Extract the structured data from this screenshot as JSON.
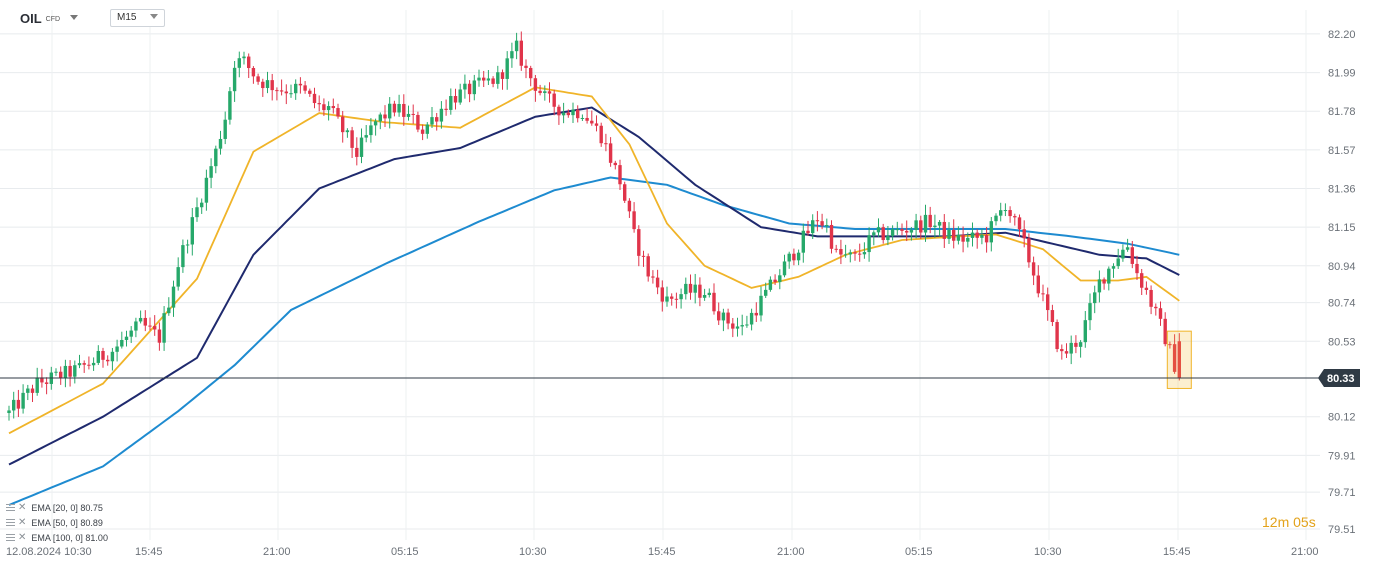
{
  "header": {
    "symbol": "OIL",
    "symbol_type": "CFD",
    "timeframe": "M15"
  },
  "indicators": [
    {
      "label": "EMA [20,  0]  80.75",
      "color": "#f0b429"
    },
    {
      "label": "EMA [50,  0]  80.89",
      "color": "#1f2a6e"
    },
    {
      "label": "EMA [100,  0]  81.00",
      "color": "#1e8bd0"
    }
  ],
  "countdown": {
    "minutes": "12",
    "minutes_unit": "m",
    "seconds": "05",
    "seconds_unit": "s"
  },
  "colors": {
    "up": "#26a86a",
    "down": "#e0344a",
    "ema20": "#f0b429",
    "ema50": "#1f2a6e",
    "ema100": "#1e8bd0",
    "current_price_line": "#2f3a45"
  },
  "chart_data": {
    "type": "candlestick",
    "interval": "M15",
    "ylim": [
      79.45,
      82.33
    ],
    "y_ticks": [
      "82.20",
      "81.99",
      "81.78",
      "81.57",
      "81.36",
      "81.15",
      "80.94",
      "80.74",
      "80.53",
      "80.33",
      "80.12",
      "79.91",
      "79.71",
      "79.51"
    ],
    "x_tick_labels": [
      "12.08.2024  10:30",
      "15:45",
      "21:00",
      "05:15",
      "10:30",
      "15:45",
      "21:00",
      "05:15",
      "10:30",
      "15:45",
      "21:00"
    ],
    "current_price": "80.33",
    "anchors": [
      [
        0,
        80.14
      ],
      [
        6,
        80.3
      ],
      [
        15,
        80.38
      ],
      [
        22,
        80.48
      ],
      [
        28,
        80.62
      ],
      [
        32,
        80.55
      ],
      [
        36,
        80.95
      ],
      [
        40,
        81.25
      ],
      [
        44,
        81.56
      ],
      [
        46,
        81.75
      ],
      [
        48,
        82.05
      ],
      [
        50,
        82.05
      ],
      [
        53,
        81.95
      ],
      [
        58,
        81.9
      ],
      [
        62,
        81.9
      ],
      [
        66,
        81.8
      ],
      [
        68,
        81.8
      ],
      [
        74,
        81.55
      ],
      [
        78,
        81.72
      ],
      [
        82,
        81.8
      ],
      [
        86,
        81.73
      ],
      [
        88,
        81.68
      ],
      [
        94,
        81.85
      ],
      [
        100,
        81.92
      ],
      [
        104,
        81.96
      ],
      [
        108,
        82.12
      ],
      [
        110,
        82.0
      ],
      [
        114,
        81.85
      ],
      [
        118,
        81.78
      ],
      [
        122,
        81.78
      ],
      [
        126,
        81.65
      ],
      [
        130,
        81.4
      ],
      [
        133,
        81.1
      ],
      [
        136,
        80.9
      ],
      [
        140,
        80.75
      ],
      [
        144,
        80.8
      ],
      [
        148,
        80.8
      ],
      [
        152,
        80.65
      ],
      [
        156,
        80.6
      ],
      [
        160,
        80.75
      ],
      [
        164,
        80.9
      ],
      [
        168,
        81.05
      ],
      [
        172,
        81.2
      ],
      [
        174,
        81.15
      ],
      [
        176,
        81.0
      ],
      [
        180,
        80.98
      ],
      [
        184,
        81.1
      ],
      [
        188,
        81.12
      ],
      [
        192,
        81.15
      ],
      [
        196,
        81.18
      ],
      [
        200,
        81.1
      ],
      [
        204,
        81.08
      ],
      [
        208,
        81.1
      ],
      [
        212,
        81.28
      ],
      [
        216,
        81.05
      ],
      [
        220,
        80.75
      ],
      [
        224,
        80.45
      ],
      [
        228,
        80.55
      ],
      [
        232,
        80.85
      ],
      [
        236,
        81.0
      ],
      [
        238,
        81.05
      ],
      [
        240,
        80.9
      ],
      [
        242,
        80.8
      ],
      [
        246,
        80.55
      ],
      [
        249,
        80.33
      ]
    ],
    "ema_anchors": {
      "ema20": [
        [
          0,
          80.03
        ],
        [
          20,
          80.3
        ],
        [
          40,
          80.87
        ],
        [
          52,
          81.56
        ],
        [
          66,
          81.77
        ],
        [
          80,
          81.72
        ],
        [
          96,
          81.69
        ],
        [
          112,
          81.91
        ],
        [
          124,
          81.86
        ],
        [
          132,
          81.6
        ],
        [
          140,
          81.17
        ],
        [
          148,
          80.94
        ],
        [
          158,
          80.82
        ],
        [
          168,
          80.88
        ],
        [
          178,
          81.0
        ],
        [
          190,
          81.08
        ],
        [
          202,
          81.1
        ],
        [
          210,
          81.11
        ],
        [
          220,
          81.03
        ],
        [
          228,
          80.86
        ],
        [
          236,
          80.86
        ],
        [
          242,
          80.88
        ],
        [
          249,
          80.75
        ]
      ],
      "ema50": [
        [
          0,
          79.86
        ],
        [
          20,
          80.12
        ],
        [
          40,
          80.44
        ],
        [
          52,
          81.0
        ],
        [
          66,
          81.36
        ],
        [
          82,
          81.52
        ],
        [
          96,
          81.58
        ],
        [
          112,
          81.75
        ],
        [
          124,
          81.8
        ],
        [
          134,
          81.64
        ],
        [
          146,
          81.38
        ],
        [
          160,
          81.15
        ],
        [
          172,
          81.1
        ],
        [
          186,
          81.1
        ],
        [
          200,
          81.1
        ],
        [
          212,
          81.12
        ],
        [
          222,
          81.06
        ],
        [
          232,
          81.0
        ],
        [
          242,
          80.98
        ],
        [
          249,
          80.89
        ]
      ],
      "ema100": [
        [
          0,
          79.64
        ],
        [
          20,
          79.85
        ],
        [
          36,
          80.15
        ],
        [
          48,
          80.4
        ],
        [
          60,
          80.7
        ],
        [
          80,
          80.95
        ],
        [
          100,
          81.18
        ],
        [
          116,
          81.35
        ],
        [
          128,
          81.42
        ],
        [
          140,
          81.38
        ],
        [
          152,
          81.27
        ],
        [
          166,
          81.17
        ],
        [
          180,
          81.14
        ],
        [
          196,
          81.14
        ],
        [
          212,
          81.14
        ],
        [
          226,
          81.1
        ],
        [
          238,
          81.06
        ],
        [
          249,
          81.0
        ]
      ]
    }
  }
}
